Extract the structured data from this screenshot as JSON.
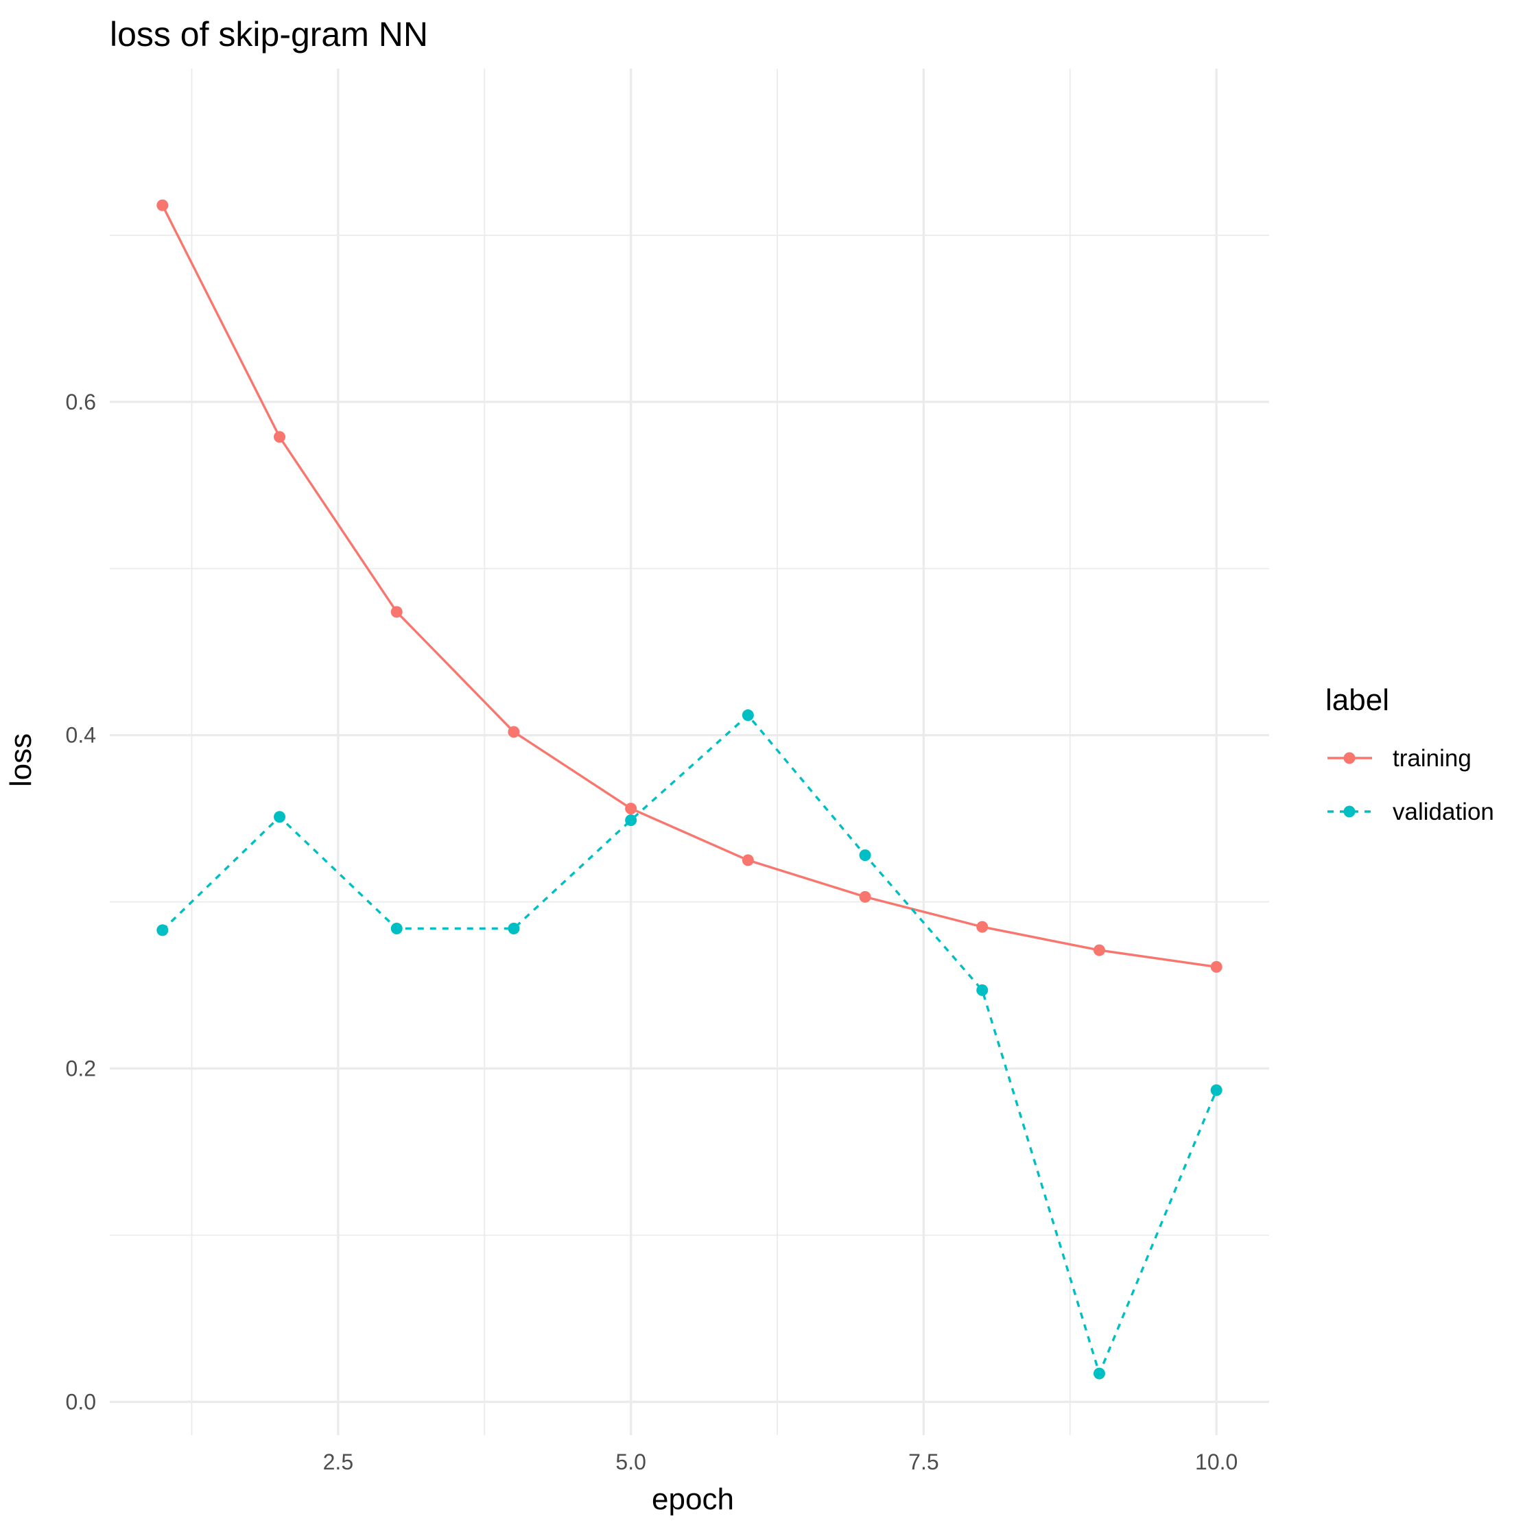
{
  "chart_data": {
    "type": "line",
    "title": "loss of skip-gram NN",
    "xlabel": "epoch",
    "ylabel": "loss",
    "xlim": [
      0.55,
      10.45
    ],
    "ylim": [
      -0.02,
      0.8
    ],
    "x_ticks": [
      2.5,
      5.0,
      7.5,
      10.0
    ],
    "x_tick_labels": [
      "2.5",
      "5.0",
      "7.5",
      "10.0"
    ],
    "x_minor_ticks": [
      1.25,
      3.75,
      6.25,
      8.75
    ],
    "y_ticks": [
      0.0,
      0.2,
      0.4,
      0.6
    ],
    "y_tick_labels": [
      "0.0",
      "0.2",
      "0.4",
      "0.6"
    ],
    "y_minor_ticks": [
      0.1,
      0.3,
      0.5,
      0.7
    ],
    "grid": true,
    "legend": {
      "title": "label",
      "position": "right"
    },
    "x": [
      1,
      2,
      3,
      4,
      5,
      6,
      7,
      8,
      9,
      10
    ],
    "series": [
      {
        "name": "training",
        "color": "#F8766D",
        "linestyle": "solid",
        "values": [
          0.718,
          0.579,
          0.474,
          0.402,
          0.356,
          0.325,
          0.303,
          0.285,
          0.271,
          0.261
        ]
      },
      {
        "name": "validation",
        "color": "#00BFC4",
        "linestyle": "dashed",
        "values": [
          0.283,
          0.351,
          0.284,
          0.284,
          0.349,
          0.412,
          0.328,
          0.247,
          0.017,
          0.187
        ]
      }
    ]
  }
}
